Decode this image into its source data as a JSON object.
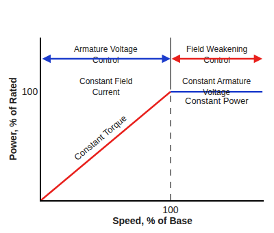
{
  "chart_data": {
    "type": "line",
    "x_label": "Speed, % of Base",
    "y_label": "Power, % of Rated",
    "xlim": [
      0,
      172
    ],
    "ylim": [
      0,
      150
    ],
    "xticks": [
      100
    ],
    "yticks": [
      100
    ],
    "grid": false,
    "series": [
      {
        "name": "Constant Torque",
        "color": "#e8201c",
        "x": [
          0,
          100
        ],
        "values": [
          0,
          100
        ]
      },
      {
        "name": "Constant Power",
        "color": "#1c3ccc",
        "x": [
          100,
          171
        ],
        "values": [
          100,
          100
        ]
      }
    ],
    "regions": [
      {
        "labels": [
          "Armature Voltage Control",
          "Constant Field Current"
        ],
        "x": [
          0,
          100
        ],
        "color": "#1c3ccc"
      },
      {
        "labels": [
          "Field Weakening Control",
          "Constant Armature Voltage"
        ],
        "x": [
          100,
          171
        ],
        "color": "#e8201c"
      }
    ]
  }
}
